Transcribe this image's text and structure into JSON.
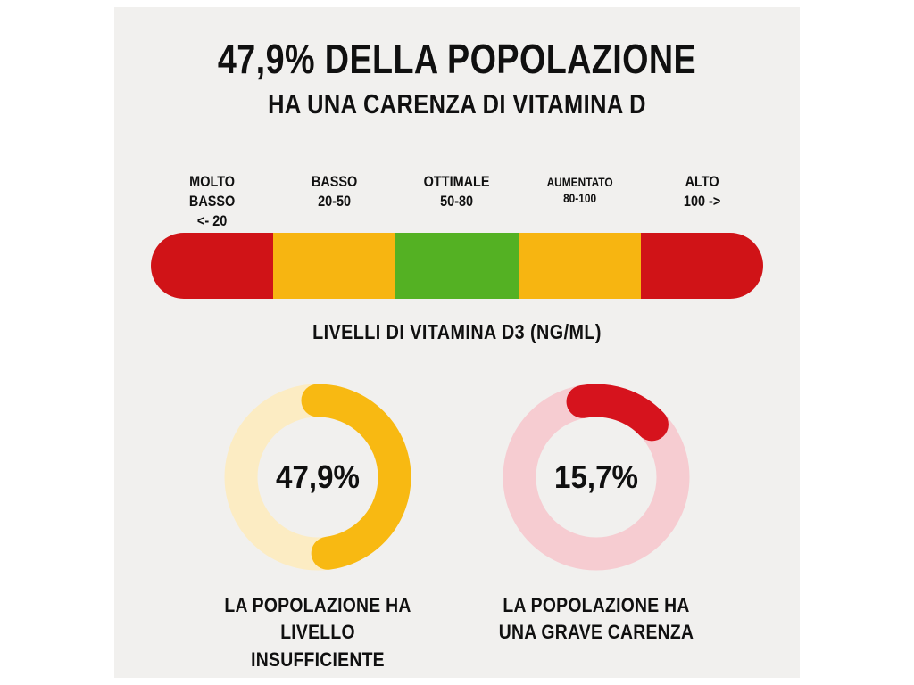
{
  "page": {
    "background": "#ffffff",
    "canvas_background": "#f1f0ee",
    "text_color": "#101010"
  },
  "title": {
    "line1": "47,9% DELLA POPOLAZIONE",
    "line2": "HA UNA CARENZA DI VITAMINA D"
  },
  "scale": {
    "caption": "LIVELLI DI VITAMINA D3 (NG/ML)",
    "unit": "ng/ml",
    "segments": [
      {
        "label": "MOLTO\nBASSO",
        "range": "<- 20",
        "color": "#d01317",
        "small": false
      },
      {
        "label": "BASSO",
        "range": "20-50",
        "color": "#f7b511",
        "small": false
      },
      {
        "label": "OTTIMALE",
        "range": "50-80",
        "color": "#54b123",
        "small": false
      },
      {
        "label": "AUMENTATO",
        "range": "80-100",
        "color": "#f7b511",
        "small": true
      },
      {
        "label": "ALTO",
        "range": "100 ->",
        "color": "#d01317",
        "small": false
      }
    ]
  },
  "chart_data": [
    {
      "type": "pie",
      "style": "donut",
      "label": "47,9%",
      "value_pct": 47.9,
      "start_deg": 0,
      "fill_color": "#f8b912",
      "track_color": "#fcecc3",
      "caption_line1": "LA POPOLAZIONE HA",
      "caption_line2": "LIVELLO INSUFFICIENTE"
    },
    {
      "type": "pie",
      "style": "donut",
      "label": "15,7%",
      "value_pct": 15.7,
      "start_deg": -10,
      "fill_color": "#d6131d",
      "track_color": "#f6ccd1",
      "caption_line1": "LA POPOLAZIONE HA",
      "caption_line2": "UNA GRAVE CARENZA"
    }
  ]
}
